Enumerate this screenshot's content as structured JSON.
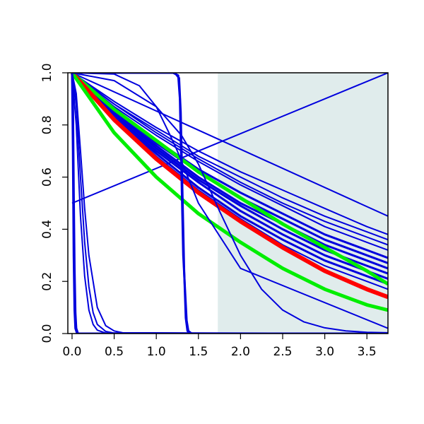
{
  "chart_data": {
    "type": "line",
    "title": "",
    "xlabel": "",
    "ylabel": "",
    "xlim": [
      -0.05,
      3.75
    ],
    "ylim": [
      0,
      1
    ],
    "grid": false,
    "x_ticks": [
      0.0,
      0.5,
      1.0,
      1.5,
      2.0,
      2.5,
      3.0,
      3.5
    ],
    "x_tick_labels": [
      "0.0",
      "0.5",
      "1.0",
      "1.5",
      "2.0",
      "2.5",
      "3.0",
      "3.5"
    ],
    "y_ticks": [
      0.0,
      0.2,
      0.4,
      0.6,
      0.8,
      1.0
    ],
    "y_tick_labels": [
      "0.0",
      "0.2",
      "0.4",
      "0.6",
      "0.8",
      "1.0"
    ],
    "shaded_region": {
      "x_start": 1.73,
      "x_end": 3.75,
      "color": "#e0ecec"
    },
    "colors": {
      "blue": "#0000dd",
      "red": "#ff0000",
      "green": "#00ee00"
    },
    "series": [
      {
        "color": "blue",
        "width": 2,
        "x": [
          0,
          3.75
        ],
        "y": [
          0.5,
          1.0
        ]
      },
      {
        "color": "blue",
        "width": 2,
        "x": [
          0,
          3.75
        ],
        "y": [
          1.0,
          0.45
        ]
      },
      {
        "color": "blue",
        "width": 2,
        "x": [
          0,
          0.5,
          1.0,
          1.5,
          2.0,
          2.5,
          3.0,
          3.5,
          3.75
        ],
        "y": [
          1.0,
          0.89,
          0.79,
          0.7,
          0.62,
          0.55,
          0.48,
          0.41,
          0.38
        ]
      },
      {
        "color": "blue",
        "width": 2,
        "x": [
          0,
          0.5,
          1.0,
          1.5,
          2.0,
          2.5,
          3.0,
          3.5,
          3.75
        ],
        "y": [
          1.0,
          0.88,
          0.78,
          0.68,
          0.6,
          0.52,
          0.45,
          0.39,
          0.36
        ]
      },
      {
        "color": "blue",
        "width": 2,
        "x": [
          0,
          0.5,
          1.0,
          1.5,
          2.0,
          2.5,
          3.0,
          3.5,
          3.75
        ],
        "y": [
          1.0,
          0.88,
          0.77,
          0.67,
          0.58,
          0.5,
          0.43,
          0.37,
          0.34
        ]
      },
      {
        "color": "blue",
        "width": 2,
        "x": [
          0,
          0.5,
          1.0,
          1.5,
          2.0,
          2.5,
          3.0,
          3.5,
          3.75
        ],
        "y": [
          1.0,
          0.87,
          0.76,
          0.66,
          0.57,
          0.49,
          0.41,
          0.35,
          0.32
        ]
      },
      {
        "color": "blue",
        "width": 3,
        "x": [
          0,
          0.5,
          1.0,
          1.5,
          2.0,
          2.5,
          3.0,
          3.5,
          3.75
        ],
        "y": [
          1.0,
          0.86,
          0.74,
          0.63,
          0.54,
          0.46,
          0.38,
          0.32,
          0.29
        ]
      },
      {
        "color": "blue",
        "width": 3,
        "x": [
          0,
          0.5,
          1.0,
          1.5,
          2.0,
          2.5,
          3.0,
          3.5,
          3.75
        ],
        "y": [
          1.0,
          0.86,
          0.73,
          0.62,
          0.52,
          0.44,
          0.36,
          0.3,
          0.27
        ]
      },
      {
        "color": "blue",
        "width": 3,
        "x": [
          0,
          0.5,
          1.0,
          1.5,
          2.0,
          2.5,
          3.0,
          3.5,
          3.75
        ],
        "y": [
          1.0,
          0.85,
          0.72,
          0.6,
          0.5,
          0.42,
          0.34,
          0.28,
          0.25
        ]
      },
      {
        "color": "blue",
        "width": 3,
        "x": [
          0,
          0.5,
          1.0,
          1.5,
          2.0,
          2.5,
          3.0,
          3.5,
          3.75
        ],
        "y": [
          1.0,
          0.85,
          0.71,
          0.59,
          0.49,
          0.4,
          0.32,
          0.26,
          0.23
        ]
      },
      {
        "color": "blue",
        "width": 3,
        "x": [
          0,
          0.5,
          1.0,
          1.5,
          2.0,
          2.5,
          3.0,
          3.5,
          3.75
        ],
        "y": [
          1.0,
          0.84,
          0.7,
          0.58,
          0.47,
          0.38,
          0.3,
          0.24,
          0.21
        ]
      },
      {
        "color": "blue",
        "width": 3,
        "x": [
          0,
          0.5,
          1.0,
          1.5,
          2.0,
          2.5,
          3.0,
          3.5,
          3.75
        ],
        "y": [
          1.0,
          0.83,
          0.69,
          0.56,
          0.45,
          0.36,
          0.28,
          0.22,
          0.19
        ]
      },
      {
        "color": "blue",
        "width": 2,
        "x": [
          0,
          0.5,
          1.0,
          1.5,
          2.0,
          2.5,
          3.0,
          3.5,
          3.75
        ],
        "y": [
          1.0,
          0.83,
          0.68,
          0.55,
          0.44,
          0.34,
          0.26,
          0.2,
          0.17
        ]
      },
      {
        "color": "green",
        "width": 5,
        "x": [
          0,
          0.5,
          1.0,
          1.5,
          2.0,
          2.5,
          3.0,
          3.5,
          3.75
        ],
        "y": [
          1.0,
          0.86,
          0.74,
          0.62,
          0.52,
          0.42,
          0.33,
          0.24,
          0.19
        ]
      },
      {
        "color": "red",
        "width": 6,
        "x": [
          0,
          0.5,
          1.0,
          1.5,
          2.0,
          2.5,
          3.0,
          3.5,
          3.75
        ],
        "y": [
          1.0,
          0.82,
          0.67,
          0.54,
          0.43,
          0.33,
          0.24,
          0.17,
          0.14
        ]
      },
      {
        "color": "green",
        "width": 5,
        "x": [
          0,
          0.5,
          1.0,
          1.5,
          2.0,
          2.5,
          3.0,
          3.5,
          3.75
        ],
        "y": [
          1.0,
          0.77,
          0.6,
          0.46,
          0.35,
          0.25,
          0.17,
          0.11,
          0.09
        ]
      },
      {
        "color": "blue",
        "width": 2,
        "x": [
          0,
          0.5,
          1.0,
          1.3,
          1.5,
          1.75,
          2.0,
          2.25,
          2.5,
          2.75,
          3.0,
          3.25,
          3.5,
          3.75
        ],
        "y": [
          1.0,
          0.97,
          0.87,
          0.76,
          0.65,
          0.47,
          0.3,
          0.17,
          0.09,
          0.045,
          0.022,
          0.01,
          0.005,
          0.003
        ]
      },
      {
        "color": "blue",
        "width": 2,
        "x": [
          0,
          0.5,
          0.8,
          1.0,
          1.15,
          1.25,
          1.3,
          1.5,
          2.0,
          3.75
        ],
        "y": [
          1.0,
          0.995,
          0.95,
          0.87,
          0.77,
          0.7,
          0.66,
          0.5,
          0.25,
          0.02
        ]
      },
      {
        "color": "blue",
        "width": 3,
        "x": [
          0,
          1.2,
          1.26,
          1.28,
          1.3,
          1.32,
          1.36,
          1.38,
          1.42,
          3.75
        ],
        "y": [
          1.0,
          1.0,
          0.99,
          0.9,
          0.6,
          0.3,
          0.05,
          0.01,
          0.0,
          0.0
        ]
      },
      {
        "color": "blue",
        "width": 3,
        "x": [
          0,
          1.22,
          1.27,
          1.29,
          1.31,
          1.33,
          1.35,
          1.37,
          1.4,
          3.75
        ],
        "y": [
          1.0,
          1.0,
          0.98,
          0.85,
          0.55,
          0.25,
          0.06,
          0.01,
          0.0,
          0.0
        ]
      },
      {
        "color": "blue",
        "width": 2,
        "x": [
          0,
          0.05,
          0.1,
          0.15,
          0.2,
          0.3,
          0.4,
          0.5,
          0.6,
          3.75
        ],
        "y": [
          1.0,
          0.92,
          0.7,
          0.48,
          0.3,
          0.1,
          0.03,
          0.01,
          0.003,
          0.0
        ]
      },
      {
        "color": "blue",
        "width": 2,
        "x": [
          0,
          0.05,
          0.1,
          0.15,
          0.2,
          0.25,
          0.3,
          0.4,
          0.5,
          3.75
        ],
        "y": [
          1.0,
          0.88,
          0.6,
          0.35,
          0.18,
          0.08,
          0.035,
          0.008,
          0.002,
          0.0
        ]
      },
      {
        "color": "blue",
        "width": 2,
        "x": [
          0,
          0.05,
          0.1,
          0.15,
          0.2,
          0.25,
          0.3,
          0.4,
          3.75
        ],
        "y": [
          1.0,
          0.8,
          0.45,
          0.22,
          0.09,
          0.035,
          0.013,
          0.002,
          0.0
        ]
      },
      {
        "color": "blue",
        "width": 3,
        "x": [
          0,
          0.01,
          0.02,
          0.03,
          0.04,
          0.05,
          0.07,
          3.75
        ],
        "y": [
          1.0,
          0.9,
          0.55,
          0.25,
          0.08,
          0.02,
          0.0,
          0.0
        ]
      },
      {
        "color": "blue",
        "width": 3,
        "x": [
          0,
          0.01,
          0.02,
          0.03,
          0.04,
          0.06,
          3.75
        ],
        "y": [
          1.0,
          0.7,
          0.3,
          0.09,
          0.02,
          0.0,
          0.0
        ]
      }
    ]
  }
}
